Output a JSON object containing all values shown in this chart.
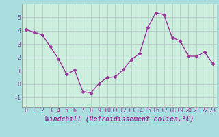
{
  "x": [
    0,
    1,
    2,
    3,
    4,
    5,
    6,
    7,
    8,
    9,
    10,
    11,
    12,
    13,
    14,
    15,
    16,
    17,
    18,
    19,
    20,
    21,
    22,
    23
  ],
  "y": [
    4.1,
    3.9,
    3.7,
    2.8,
    1.9,
    0.75,
    1.05,
    -0.55,
    -0.65,
    0.05,
    0.5,
    0.55,
    1.1,
    1.85,
    2.3,
    4.25,
    5.35,
    5.2,
    3.5,
    3.25,
    2.1,
    2.1,
    2.4,
    1.55
  ],
  "line_color": "#993399",
  "marker": "D",
  "markersize": 2.5,
  "linewidth": 1.0,
  "bg_color": "#aadddd",
  "plot_bg_color": "#cceedd",
  "grid_color": "#bbcccc",
  "xlabel": "Windchill (Refroidissement éolien,°C)",
  "xlabel_fontsize": 7,
  "tick_fontsize": 6,
  "xlim": [
    -0.5,
    23.5
  ],
  "ylim": [
    -1.7,
    6.0
  ],
  "yticks": [
    -1,
    0,
    1,
    2,
    3,
    4,
    5
  ],
  "xticks": [
    0,
    1,
    2,
    3,
    4,
    5,
    6,
    7,
    8,
    9,
    10,
    11,
    12,
    13,
    14,
    15,
    16,
    17,
    18,
    19,
    20,
    21,
    22,
    23
  ],
  "text_color": "#993399",
  "spine_color": "#888888"
}
